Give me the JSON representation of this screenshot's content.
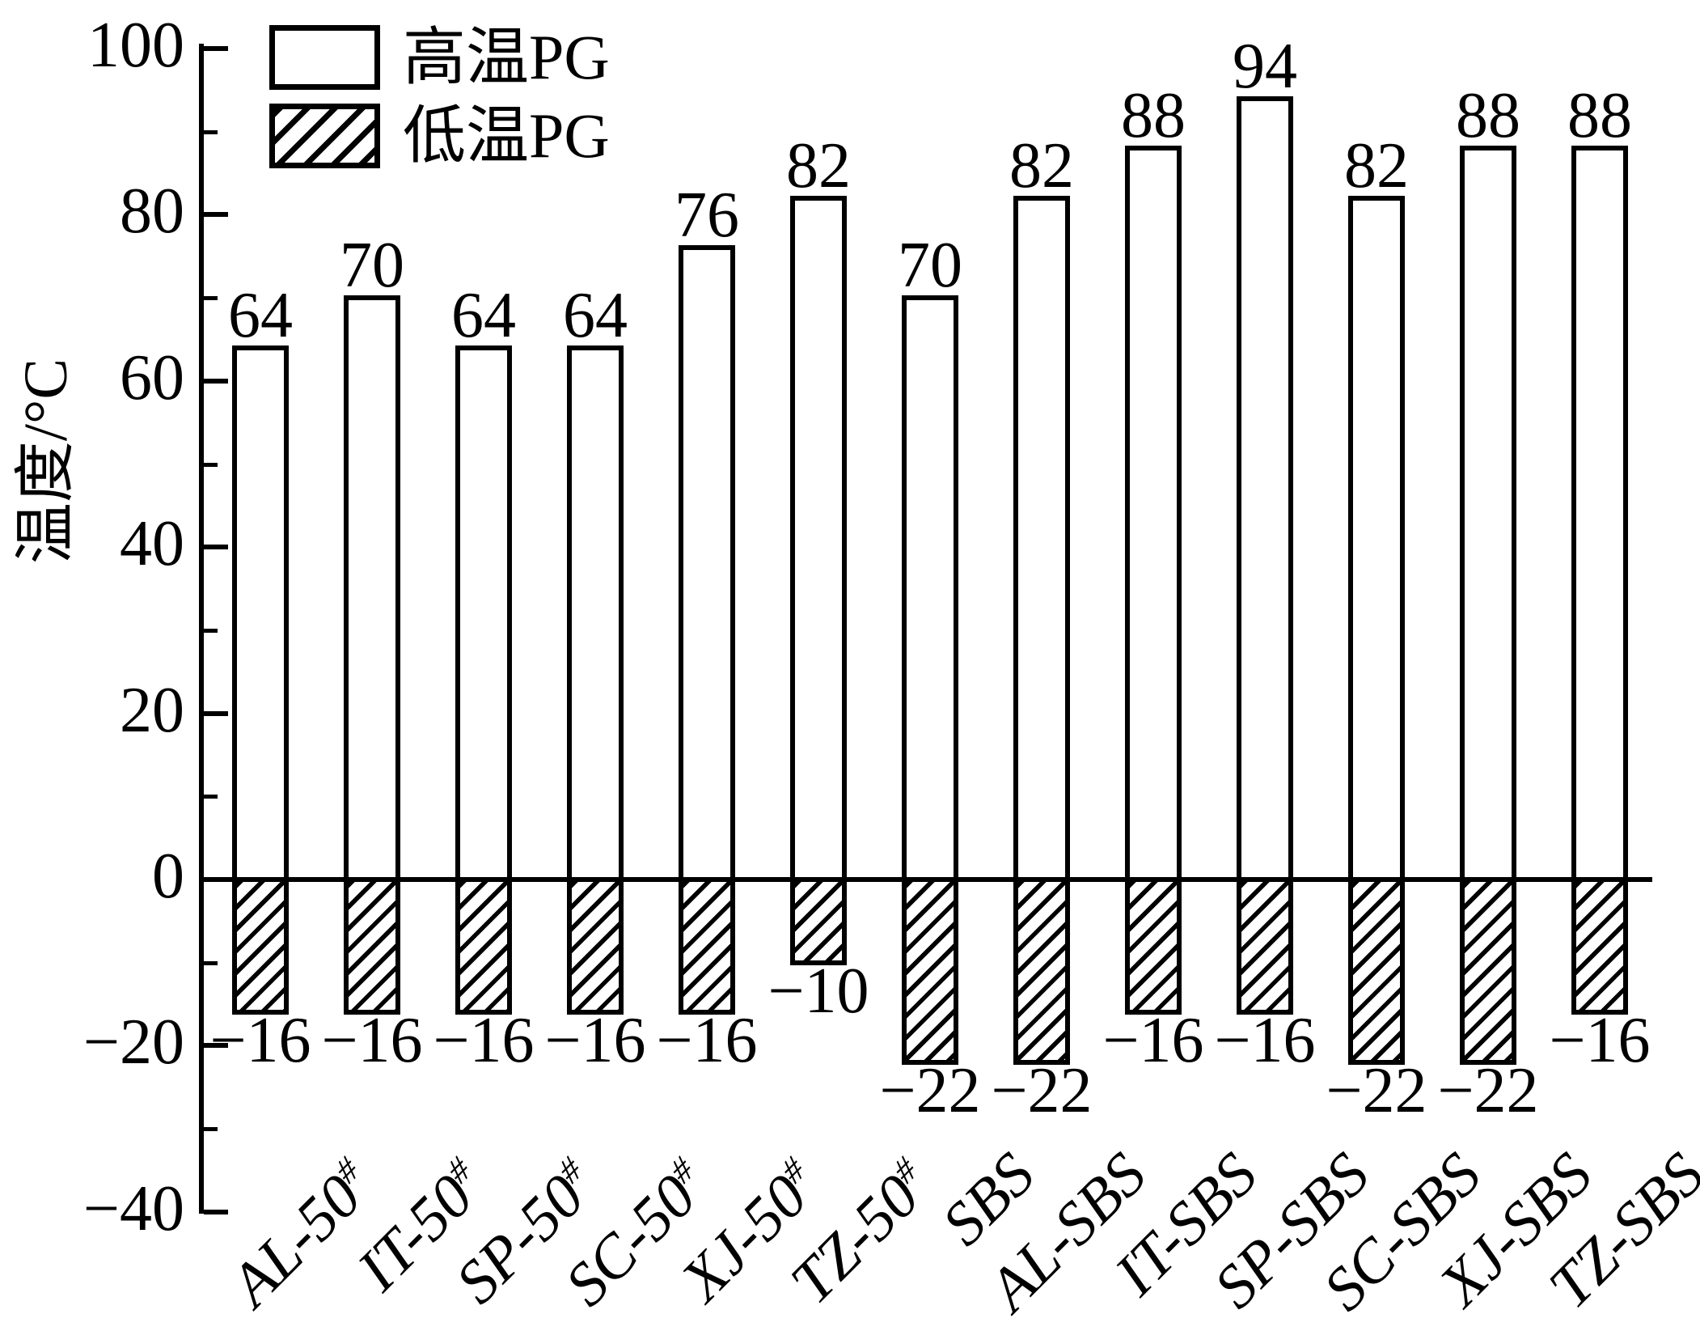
{
  "chart_data": {
    "type": "bar",
    "title": "",
    "ylabel": "温度/°C",
    "xlabel": "",
    "ylim": [
      -40,
      100
    ],
    "ytick_major": [
      100,
      80,
      60,
      40,
      20,
      0,
      -20,
      -40
    ],
    "ytick_minor": [
      90,
      70,
      50,
      30,
      10,
      -10,
      -30
    ],
    "grid": false,
    "legend_position": "upper-left",
    "categories": [
      "AL-50#",
      "IT-50#",
      "SP-50#",
      "SC-50#",
      "XJ-50#",
      "TZ-50#",
      "SBS",
      "AL-SBS",
      "IT-SBS",
      "SP-SBS",
      "SC-SBS",
      "XJ-SBS",
      "TZ-SBS"
    ],
    "series": [
      {
        "name": "高温PG",
        "pattern": "solid-white",
        "values": [
          64,
          70,
          64,
          64,
          76,
          82,
          70,
          82,
          88,
          94,
          82,
          88,
          88
        ]
      },
      {
        "name": "低温PG",
        "pattern": "diagonal-hatch",
        "values": [
          -16,
          -16,
          -16,
          -16,
          -16,
          -10,
          -22,
          -22,
          -16,
          -16,
          -22,
          -22,
          -16
        ]
      }
    ],
    "bar_value_labels_shown": true,
    "colors": {
      "foreground": "#000000",
      "background": "#ffffff"
    }
  }
}
